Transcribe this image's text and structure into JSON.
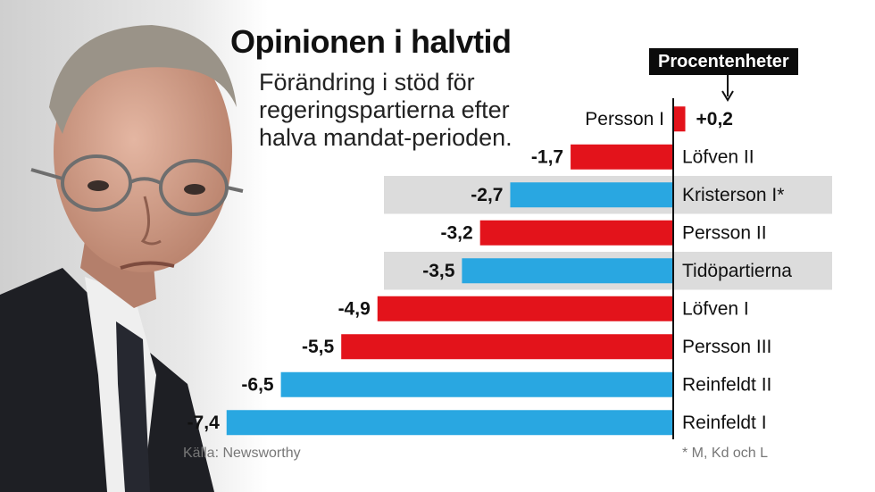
{
  "title": "Opinionen i halvtid",
  "subtitle": "Förändring i stöd för regeringspartierna efter halva mandat-perioden.",
  "unit_label": "Procentenheter",
  "source": "Källa: Newsworthy",
  "footnote": "* M, Kd och L",
  "colors": {
    "negative_red": "#e3131b",
    "highlight_blue": "#29a7e1",
    "highlight_band": "#dcdcdc",
    "axis": "#111111"
  },
  "chart_data": {
    "type": "bar",
    "orientation": "horizontal",
    "categories": [
      "Persson I",
      "Löfven II",
      "Kristerson I*",
      "Persson II",
      "Tidöpartierna",
      "Löfven I",
      "Persson III",
      "Reinfeldt II",
      "Reinfeldt I"
    ],
    "values": [
      0.2,
      -1.7,
      -2.7,
      -3.2,
      -3.5,
      -4.9,
      -5.5,
      -6.5,
      -7.4
    ],
    "value_labels": [
      "+0,2",
      "-1,7",
      "-2,7",
      "-3,2",
      "-3,5",
      "-4,9",
      "-5,5",
      "-6,5",
      "-7,4"
    ],
    "bar_colors": [
      "red",
      "red",
      "blue",
      "red",
      "blue",
      "red",
      "red",
      "blue",
      "blue"
    ],
    "highlighted_rows": [
      2,
      4
    ],
    "xlim": [
      -7.4,
      0.2
    ],
    "grid": false
  }
}
